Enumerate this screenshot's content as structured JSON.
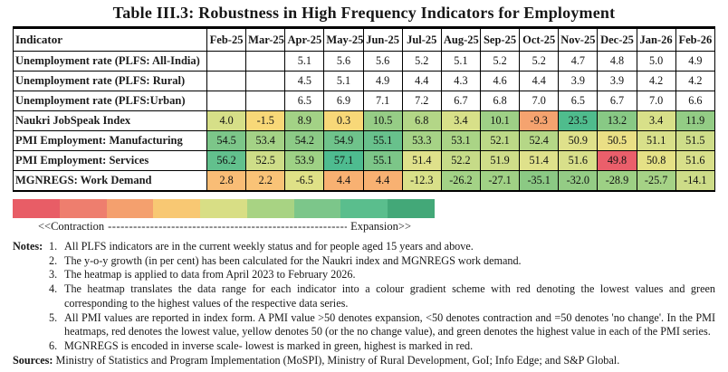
{
  "title": "Table III.3: Robustness in High Frequency Indicators for Employment",
  "table": {
    "indicator_header": "Indicator",
    "months": [
      "Feb-25",
      "Mar-25",
      "Apr-25",
      "May-25",
      "Jun-25",
      "Jul-25",
      "Aug-25",
      "Sep-25",
      "Oct-25",
      "Nov-25",
      "Dec-25",
      "Jan-26",
      "Feb-26"
    ],
    "rows": [
      {
        "indicator": "Unemployment rate (PLFS: All-India)",
        "values": [
          "",
          "",
          "5.1",
          "5.6",
          "5.6",
          "5.2",
          "5.1",
          "5.2",
          "5.2",
          "4.7",
          "4.8",
          "5.0",
          "4.9"
        ],
        "colors": [
          "",
          "",
          "",
          "",
          "",
          "",
          "",
          "",
          "",
          "",
          "",
          "",
          ""
        ]
      },
      {
        "indicator": "Unemployment rate (PLFS: Rural)",
        "values": [
          "",
          "",
          "4.5",
          "5.1",
          "4.9",
          "4.4",
          "4.3",
          "4.6",
          "4.4",
          "3.9",
          "3.9",
          "4.2",
          "4.2"
        ],
        "colors": [
          "",
          "",
          "",
          "",
          "",
          "",
          "",
          "",
          "",
          "",
          "",
          "",
          ""
        ]
      },
      {
        "indicator": "Unemployment rate (PLFS:Urban)",
        "values": [
          "",
          "",
          "6.5",
          "6.9",
          "7.1",
          "7.2",
          "6.7",
          "6.8",
          "7.0",
          "6.5",
          "6.7",
          "7.0",
          "6.6"
        ],
        "colors": [
          "",
          "",
          "",
          "",
          "",
          "",
          "",
          "",
          "",
          "",
          "",
          "",
          ""
        ]
      },
      {
        "indicator": "Naukri JobSpeak Index",
        "values": [
          "4.0",
          "-1.5",
          "8.9",
          "0.3",
          "10.5",
          "6.8",
          "3.4",
          "10.1",
          "-9.3",
          "23.5",
          "13.2",
          "3.4",
          "11.9"
        ],
        "colors": [
          "#d6df88",
          "#f8d878",
          "#a3d286",
          "#f8d878",
          "#96cd86",
          "#b3d687",
          "#d8e089",
          "#9ed086",
          "#f5a36f",
          "#4fbc8d",
          "#88c985",
          "#d8e089",
          "#93cc85"
        ]
      },
      {
        "indicator": "PMI Employment: Manufacturing",
        "values": [
          "54.5",
          "53.4",
          "54.2",
          "54.9",
          "55.1",
          "53.3",
          "53.1",
          "52.1",
          "52.4",
          "50.9",
          "50.5",
          "51.1",
          "51.5"
        ],
        "colors": [
          "#7cc689",
          "#a4d286",
          "#8cca86",
          "#6fc38b",
          "#68c18c",
          "#a6d386",
          "#aad486",
          "#bcd987",
          "#b5d787",
          "#dfe18b",
          "#eadf85",
          "#d8e08a",
          "#cedd89"
        ]
      },
      {
        "indicator": "PMI Employment: Services",
        "values": [
          "56.2",
          "52.5",
          "53.9",
          "57.1",
          "55.1",
          "51.4",
          "52.2",
          "51.9",
          "51.4",
          "51.6",
          "49.8",
          "50.8",
          "51.6"
        ],
        "colors": [
          "#62c08d",
          "#cedd88",
          "#9ed185",
          "#4ebc90",
          "#7cc688",
          "#dfe18b",
          "#c6db88",
          "#cfdd89",
          "#dfe18b",
          "#d8df8a",
          "#ea5f6b",
          "#e5e186",
          "#d8df8a"
        ]
      },
      {
        "indicator": "MGNREGS: Work Demand",
        "values": [
          "2.8",
          "2.2",
          "-6.5",
          "4.4",
          "4.4",
          "-12.3",
          "-26.2",
          "-27.1",
          "-35.1",
          "-32.0",
          "-28.9",
          "-25.7",
          "-14.1"
        ],
        "colors": [
          "#f9bd76",
          "#f9c377",
          "#dfe187",
          "#f8b172",
          "#f8b172",
          "#d9e089",
          "#a3d286",
          "#a0d185",
          "#8bc984",
          "#94cc85",
          "#9dd085",
          "#a5d286",
          "#cddc88"
        ]
      }
    ]
  },
  "legend": {
    "bar_colors": [
      "#e85d66",
      "#ee7e6e",
      "#f4a06e",
      "#f8c873",
      "#d8de85",
      "#a8d383",
      "#7cc68a",
      "#5abe8d",
      "#43a878"
    ],
    "contraction_label": "<<Contraction",
    "dashes": "--------------------------------------------------------------------------------------------------------------------------------",
    "expansion_label": "Expansion>>"
  },
  "notes": {
    "label": "Notes:",
    "items": [
      "All PLFS indicators are in the current weekly status and for people aged 15 years and above.",
      "The y-o-y growth (in per cent) has been calculated for the Naukri index and MGNREGS work demand.",
      "The heatmap is applied to data from April 2023 to February 2026.",
      "The heatmap translates the data range for each indicator into a colour gradient scheme with red denoting the lowest values and green corresponding to the highest values of the respective data series.",
      "All PMI values are reported in index form. A PMI value >50 denotes expansion, <50 denotes contraction and =50 denotes 'no change'. In the PMI heatmaps, red denotes the lowest value, yellow denotes 50 (or the no change value), and green denotes the highest value in each of the PMI series.",
      "MGNREGS is encoded in inverse scale- lowest is marked in green, highest is marked in red."
    ]
  },
  "sources": {
    "label": "Sources:",
    "text": " Ministry of Statistics and Program Implementation (MoSPI), Ministry of Rural Development, GoI; Info Edge; and S&P Global."
  }
}
